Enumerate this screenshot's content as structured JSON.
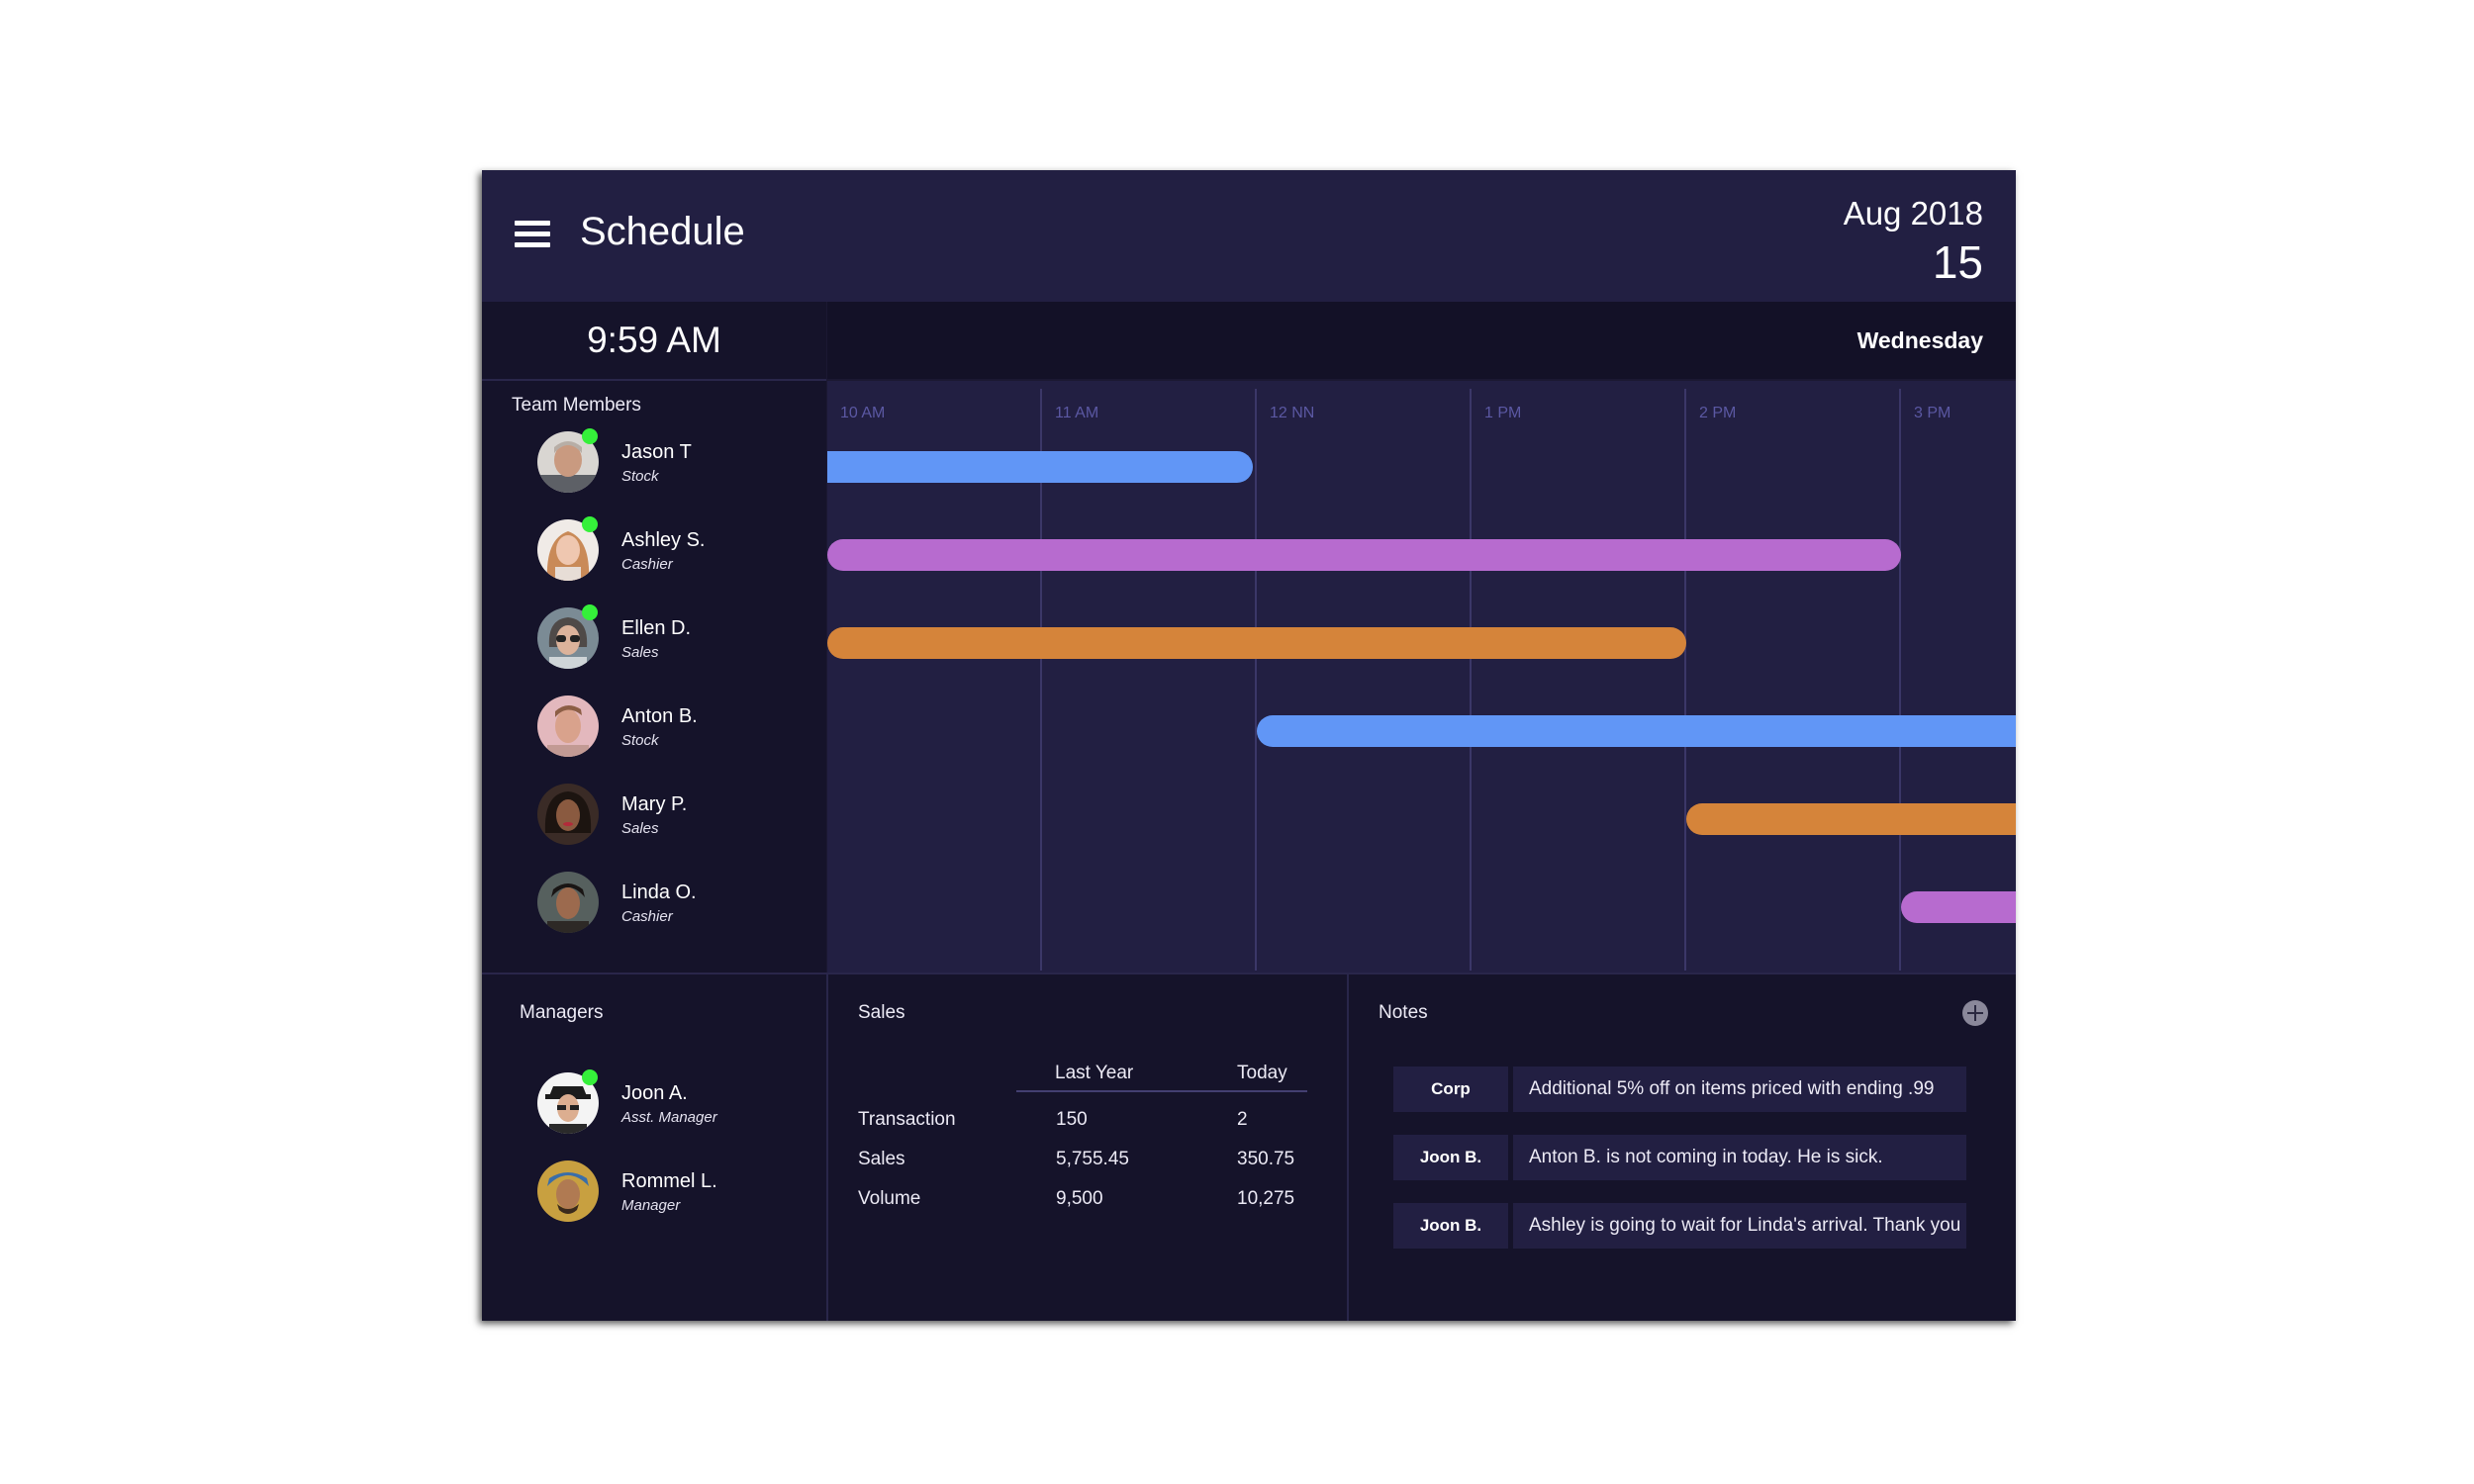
{
  "header": {
    "title": "Schedule",
    "month": "Aug 2018",
    "day_number": "15",
    "menu_icon": "hamburger-menu-icon"
  },
  "time_bar": {
    "time": "9:59 AM",
    "weekday": "Wednesday"
  },
  "team": {
    "title": "Team Members",
    "members": [
      {
        "name": "Jason T",
        "role": "Stock",
        "online": true
      },
      {
        "name": "Ashley S.",
        "role": "Cashier",
        "online": true
      },
      {
        "name": "Ellen D.",
        "role": "Sales",
        "online": true
      },
      {
        "name": "Anton B.",
        "role": "Stock",
        "online": false
      },
      {
        "name": "Mary P.",
        "role": "Sales",
        "online": false
      },
      {
        "name": "Linda O.",
        "role": "Cashier",
        "online": false
      }
    ]
  },
  "timeline": {
    "hours": [
      "10 AM",
      "11 AM",
      "12 NN",
      "1 PM",
      "2 PM",
      "3 PM"
    ],
    "colors": {
      "blue": "#6196f6",
      "purple": "#b76bcf",
      "orange": "#d5843a"
    }
  },
  "managers": {
    "title": "Managers",
    "people": [
      {
        "name": "Joon A.",
        "role": "Asst. Manager",
        "online": true
      },
      {
        "name": "Rommel L.",
        "role": "Manager",
        "online": false
      }
    ]
  },
  "sales": {
    "title": "Sales",
    "columns": [
      "Last Year",
      "Today"
    ],
    "rows": [
      {
        "label": "Transaction",
        "last_year": "150",
        "today": "2"
      },
      {
        "label": "Sales",
        "last_year": "5,755.45",
        "today": "350.75"
      },
      {
        "label": "Volume",
        "last_year": "9,500",
        "today": "10,275"
      }
    ]
  },
  "notes": {
    "title": "Notes",
    "add_icon": "plus-circle-icon",
    "items": [
      {
        "author": "Corp",
        "text": "Additional 5% off on items priced with ending .99"
      },
      {
        "author": "Joon B.",
        "text": "Anton B. is not coming in today. He is sick."
      },
      {
        "author": "Joon B.",
        "text": "Ashley is going to wait for Linda's arrival. Thank you"
      }
    ]
  }
}
